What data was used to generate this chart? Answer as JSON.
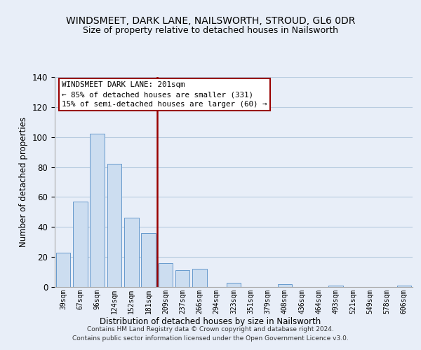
{
  "title": "WINDSMEET, DARK LANE, NAILSWORTH, STROUD, GL6 0DR",
  "subtitle": "Size of property relative to detached houses in Nailsworth",
  "xlabel": "Distribution of detached houses by size in Nailsworth",
  "ylabel": "Number of detached properties",
  "bar_color": "#ccddf0",
  "bar_edge_color": "#6699cc",
  "categories": [
    "39sqm",
    "67sqm",
    "96sqm",
    "124sqm",
    "152sqm",
    "181sqm",
    "209sqm",
    "237sqm",
    "266sqm",
    "294sqm",
    "323sqm",
    "351sqm",
    "379sqm",
    "408sqm",
    "436sqm",
    "464sqm",
    "493sqm",
    "521sqm",
    "549sqm",
    "578sqm",
    "606sqm"
  ],
  "values": [
    23,
    57,
    102,
    82,
    46,
    36,
    16,
    11,
    12,
    0,
    3,
    0,
    0,
    2,
    0,
    0,
    1,
    0,
    0,
    0,
    1
  ],
  "ylim": [
    0,
    140
  ],
  "yticks": [
    0,
    20,
    40,
    60,
    80,
    100,
    120,
    140
  ],
  "ref_line_index": 6,
  "annotation_title": "WINDSMEET DARK LANE: 201sqm",
  "annotation_line1": "← 85% of detached houses are smaller (331)",
  "annotation_line2": "15% of semi-detached houses are larger (60) →",
  "footnote1": "Contains HM Land Registry data © Crown copyright and database right 2024.",
  "footnote2": "Contains public sector information licensed under the Open Government Licence v3.0.",
  "bg_color": "#e8eef8",
  "plot_bg_color": "#e8eef8",
  "grid_color": "#b8cce0",
  "ref_line_color": "#990000",
  "title_fontsize": 10,
  "subtitle_fontsize": 9
}
